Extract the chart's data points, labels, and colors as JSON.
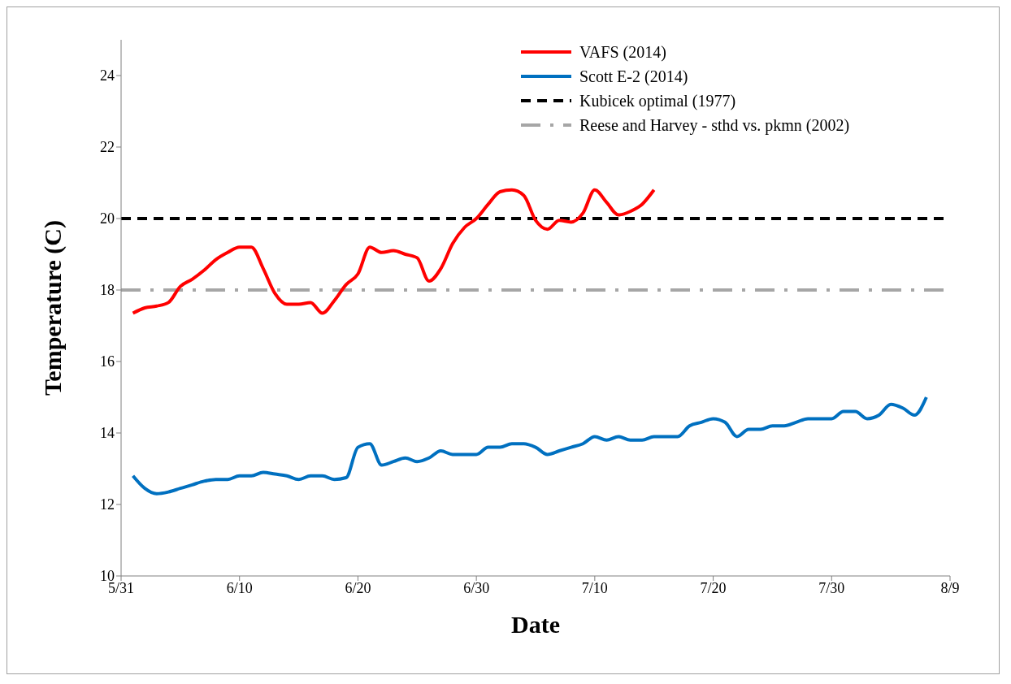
{
  "chart_data": {
    "type": "line",
    "xlabel": "Date",
    "ylabel": "Temperature  (C)",
    "xlim": [
      "--05-31",
      "--08-09"
    ],
    "xticks": [
      {
        "value": "--05-31",
        "label": "5/31"
      },
      {
        "value": "--06-10",
        "label": "6/10"
      },
      {
        "value": "--06-20",
        "label": "6/20"
      },
      {
        "value": "--06-30",
        "label": "6/30"
      },
      {
        "value": "--07-10",
        "label": "7/10"
      },
      {
        "value": "--07-20",
        "label": "7/20"
      },
      {
        "value": "--07-30",
        "label": "7/30"
      },
      {
        "value": "--08-09",
        "label": "8/9"
      }
    ],
    "ylim": [
      10,
      25
    ],
    "yticks": [
      10,
      12,
      14,
      16,
      18,
      20,
      22,
      24
    ],
    "legend": "top right",
    "marker": "none",
    "line_style": "solid",
    "series": [
      {
        "name": "VAFS (2014)",
        "color": "#ff0000",
        "x": [
          "--06-01",
          "--06-02",
          "--06-03",
          "--06-04",
          "--06-05",
          "--06-06",
          "--06-07",
          "--06-08",
          "--06-09",
          "--06-10",
          "--06-11",
          "--06-12",
          "--06-13",
          "--06-14",
          "--06-15",
          "--06-16",
          "--06-17",
          "--06-18",
          "--06-19",
          "--06-20",
          "--06-21",
          "--06-22",
          "--06-23",
          "--06-24",
          "--06-25",
          "--06-26",
          "--06-27",
          "--06-28",
          "--06-29",
          "--06-30",
          "--07-01",
          "--07-02",
          "--07-03",
          "--07-04",
          "--07-05",
          "--07-06",
          "--07-07",
          "--07-08",
          "--07-09",
          "--07-10",
          "--07-11",
          "--07-12",
          "--07-13",
          "--07-14",
          "--07-15"
        ],
        "values": [
          17.35,
          17.5,
          17.55,
          17.65,
          18.1,
          18.3,
          18.55,
          18.85,
          19.05,
          19.2,
          19.2,
          18.6,
          17.9,
          17.6,
          17.6,
          17.65,
          17.35,
          17.7,
          18.15,
          18.45,
          19.2,
          19.05,
          19.1,
          19.0,
          18.9,
          18.25,
          18.6,
          19.3,
          19.75,
          20.0,
          20.4,
          20.75,
          20.8,
          20.65,
          19.95,
          19.7,
          19.95,
          19.9,
          20.15,
          20.8,
          20.45,
          20.1,
          20.2,
          20.4,
          20.8
        ]
      },
      {
        "name": "Scott E-2 (2014)",
        "color": "#0070c0",
        "x": [
          "--06-01",
          "--06-02",
          "--06-03",
          "--06-04",
          "--06-05",
          "--06-06",
          "--06-07",
          "--06-08",
          "--06-09",
          "--06-10",
          "--06-11",
          "--06-12",
          "--06-13",
          "--06-14",
          "--06-15",
          "--06-16",
          "--06-17",
          "--06-18",
          "--06-19",
          "--06-20",
          "--06-21",
          "--06-22",
          "--06-23",
          "--06-24",
          "--06-25",
          "--06-26",
          "--06-27",
          "--06-28",
          "--06-29",
          "--06-30",
          "--07-01",
          "--07-02",
          "--07-03",
          "--07-04",
          "--07-05",
          "--07-06",
          "--07-07",
          "--07-08",
          "--07-09",
          "--07-10",
          "--07-11",
          "--07-12",
          "--07-13",
          "--07-14",
          "--07-15",
          "--07-16",
          "--07-17",
          "--07-18",
          "--07-19",
          "--07-20",
          "--07-21",
          "--07-22",
          "--07-23",
          "--07-24",
          "--07-25",
          "--07-26",
          "--07-27",
          "--07-28",
          "--07-29",
          "--07-30",
          "--07-31",
          "--08-01",
          "--08-02",
          "--08-03",
          "--08-04",
          "--08-05",
          "--08-06",
          "--08-07"
        ],
        "values": [
          12.8,
          12.45,
          12.3,
          12.35,
          12.45,
          12.55,
          12.65,
          12.7,
          12.7,
          12.8,
          12.8,
          12.9,
          12.85,
          12.8,
          12.7,
          12.8,
          12.8,
          12.7,
          12.75,
          13.6,
          13.7,
          13.1,
          13.2,
          13.3,
          13.2,
          13.3,
          13.5,
          13.4,
          13.4,
          13.4,
          13.6,
          13.6,
          13.7,
          13.7,
          13.6,
          13.4,
          13.5,
          13.6,
          13.7,
          13.9,
          13.8,
          13.9,
          13.8,
          13.8,
          13.9,
          13.9,
          13.9,
          14.2,
          14.3,
          14.4,
          14.3,
          13.9,
          14.1,
          14.1,
          14.2,
          14.2,
          14.3,
          14.4,
          14.4,
          14.4,
          14.6,
          14.6,
          14.4,
          14.5,
          14.8,
          14.7,
          14.5,
          15.0
        ]
      }
    ],
    "ref_lines": [
      {
        "axis": "y",
        "value": 20,
        "label": "Kubicek optimal (1977)",
        "color": "#000000",
        "line_style": "dashed"
      },
      {
        "axis": "y",
        "value": 18,
        "label": "Reese and Harvey - sthd vs. pkmn (2002)",
        "color": "#a6a6a6",
        "line_style": "dashdot"
      }
    ]
  }
}
